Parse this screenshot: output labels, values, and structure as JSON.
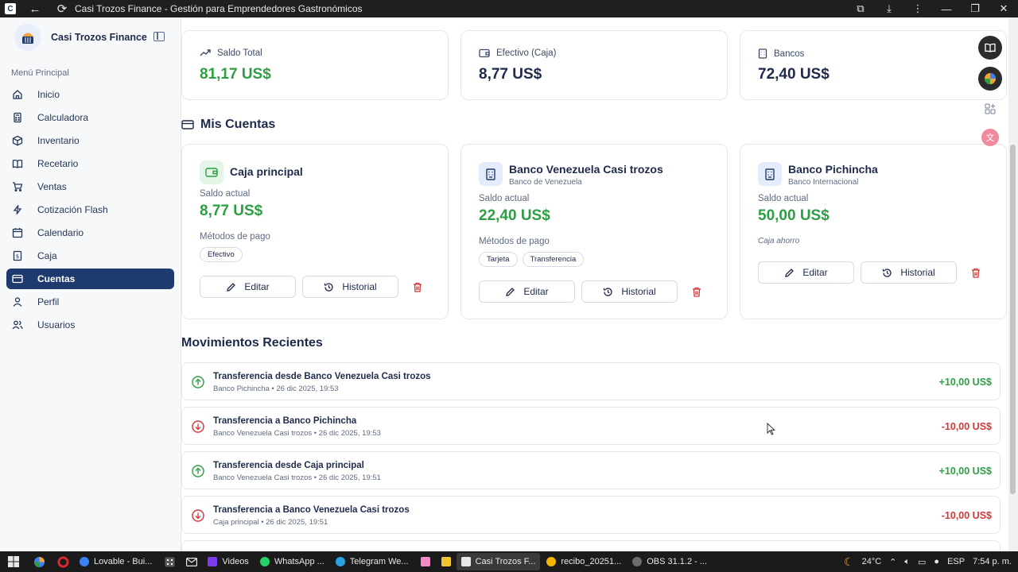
{
  "browser": {
    "title": "Casi Trozos Finance - Gestión para Emprendedores Gastronómicos",
    "logo_letter": "C"
  },
  "sidebar": {
    "brand": "Casi Trozos Finance",
    "menu_title": "Menú Principal",
    "items": [
      {
        "label": "Inicio",
        "icon": "home-icon"
      },
      {
        "label": "Calculadora",
        "icon": "calculator-icon"
      },
      {
        "label": "Inventario",
        "icon": "box-icon"
      },
      {
        "label": "Recetario",
        "icon": "book-icon"
      },
      {
        "label": "Ventas",
        "icon": "cart-icon"
      },
      {
        "label": "Cotización Flash",
        "icon": "lightning-icon"
      },
      {
        "label": "Calendario",
        "icon": "calendar-icon"
      },
      {
        "label": "Caja",
        "icon": "cash-register-icon"
      },
      {
        "label": "Cuentas",
        "icon": "accounts-icon",
        "active": true
      },
      {
        "label": "Perfil",
        "icon": "user-icon"
      },
      {
        "label": "Usuarios",
        "icon": "users-icon"
      }
    ]
  },
  "stats": [
    {
      "label": "Saldo Total",
      "value": "81,17 US$",
      "color": "#2e9e44"
    },
    {
      "label": "Efectivo (Caja)",
      "value": "8,77 US$",
      "color": "#1e2a4a"
    },
    {
      "label": "Bancos",
      "value": "72,40 US$",
      "color": "#1e2a4a"
    }
  ],
  "accounts_section": {
    "title": "Mis Cuentas",
    "balance_label": "Saldo actual",
    "methods_label": "Métodos de pago",
    "edit_label": "Editar",
    "history_label": "Historial",
    "accounts": [
      {
        "name": "Caja principal",
        "subtitle": "",
        "balance": "8,77 US$",
        "methods": [
          "Efectivo"
        ],
        "note": ""
      },
      {
        "name": "Banco Venezuela Casi trozos",
        "subtitle": "Banco de Venezuela",
        "balance": "22,40 US$",
        "methods": [
          "Tarjeta",
          "Transferencia"
        ],
        "note": ""
      },
      {
        "name": "Banco Pichincha",
        "subtitle": "Banco Internacional",
        "balance": "50,00 US$",
        "methods": [],
        "note": "Caja ahorro"
      }
    ]
  },
  "movements": {
    "title": "Movimientos Recientes",
    "items": [
      {
        "title": "Transferencia desde Banco Venezuela Casi trozos",
        "subtitle": "Banco Pichincha • 26 dic 2025, 19:53",
        "amount": "+10,00 US$",
        "direction": "in"
      },
      {
        "title": "Transferencia a Banco Pichincha",
        "subtitle": "Banco Venezuela Casi trozos • 26 dic 2025, 19:53",
        "amount": "-10,00 US$",
        "direction": "out"
      },
      {
        "title": "Transferencia desde Caja principal",
        "subtitle": "Banco Venezuela Casi trozos • 26 dic 2025, 19:51",
        "amount": "+10,00 US$",
        "direction": "in"
      },
      {
        "title": "Transferencia a Banco Venezuela Casi trozos",
        "subtitle": "Caja principal • 26 dic 2025, 19:51",
        "amount": "-10,00 US$",
        "direction": "out"
      }
    ]
  },
  "taskbar": {
    "apps": [
      {
        "label": "Lovable - Bui...",
        "color": "#3b82f6"
      },
      {
        "label": "Videos",
        "color": "#7c3aed"
      },
      {
        "label": "WhatsApp ...",
        "color": "#25d366"
      },
      {
        "label": "Telegram We...",
        "color": "#2aa3e0"
      },
      {
        "label": "Casi Trozos F...",
        "color": "#e8e8e8",
        "active": true
      },
      {
        "label": "recibo_20251...",
        "color": "#f4b400"
      },
      {
        "label": "OBS 31.1.2 - ...",
        "color": "#6b6b6b"
      }
    ],
    "weather": "24°C",
    "language": "ESP",
    "time": "7:54 p. m."
  }
}
